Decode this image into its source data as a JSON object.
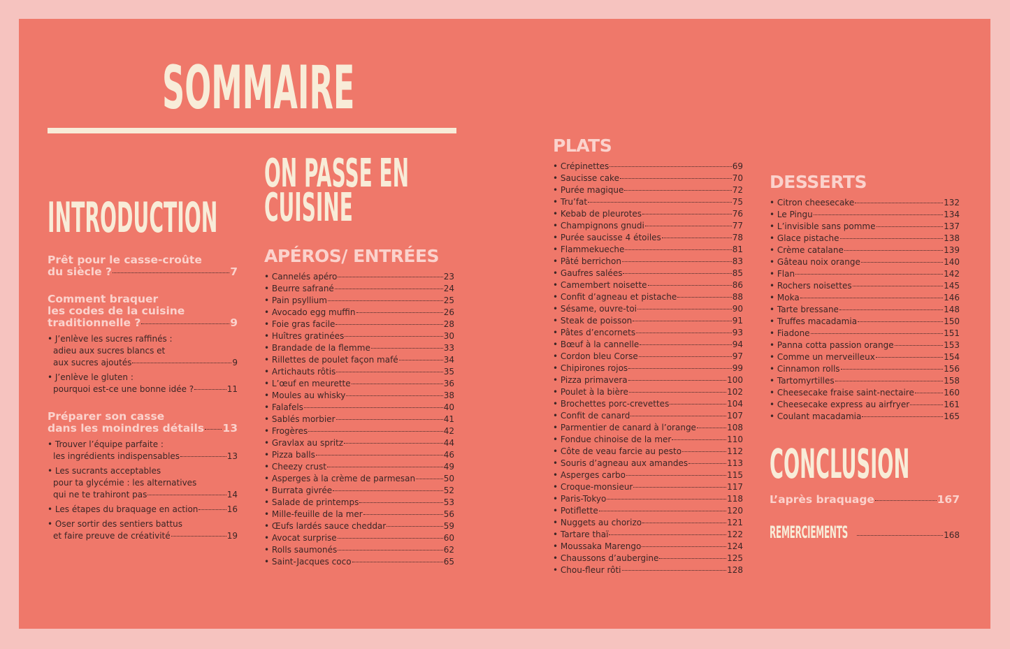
{
  "header": {
    "title": "SOMMAIRE"
  },
  "introduction": {
    "heading": "INTRODUCTION",
    "sections": [
      {
        "title": [
          "Prêt pour le casse-croûte",
          "du siècle ?"
        ],
        "page": 7,
        "items": []
      },
      {
        "title": [
          "Comment braquer",
          "les codes de la cuisine",
          "traditionnelle ?"
        ],
        "page": 9,
        "items": [
          {
            "lines": [
              "• J’enlève les sucres raffinés :",
              "adieu aux sucres blancs et",
              "aux sucres ajoutés"
            ],
            "page": 9
          },
          {
            "lines": [
              "• J’enlève le gluten :",
              "pourquoi est-ce une bonne idée ?"
            ],
            "page": 11
          }
        ]
      },
      {
        "title": [
          "Préparer son casse",
          "dans les moindres détails"
        ],
        "page": 13,
        "items": [
          {
            "lines": [
              "• Trouver l’équipe parfaite :",
              "les ingrédients indispensables"
            ],
            "page": 13
          },
          {
            "lines": [
              "• Les sucrants acceptables",
              "pour ta glycémie : les alternatives",
              "qui ne te trahiront pas"
            ],
            "page": 14
          },
          {
            "lines": [
              "• Les étapes du braquage en action"
            ],
            "page": 16
          },
          {
            "lines": [
              "• Oser sortir des sentiers battus",
              "et faire preuve de créativité"
            ],
            "page": 19
          }
        ]
      }
    ]
  },
  "cuisine": {
    "heading": [
      "ON PASSE EN",
      "CUISINE"
    ]
  },
  "aperos": {
    "heading": "APÉROS/ ENTRÉES",
    "items": [
      {
        "text": "• Cannelés apéro",
        "page": 23
      },
      {
        "text": "• Beurre safrané",
        "page": 24
      },
      {
        "text": "• Pain psyllium",
        "page": 25
      },
      {
        "text": "• Avocado egg muffin",
        "page": 26
      },
      {
        "text": "• Foie gras facile",
        "page": 28
      },
      {
        "text": "• Huîtres gratinées",
        "page": 30
      },
      {
        "text": "• Brandade de la flemme",
        "page": 33
      },
      {
        "text": "• Rillettes de poulet façon mafé",
        "page": 34
      },
      {
        "text": "• Artichauts rôtis",
        "page": 35
      },
      {
        "text": "• L’œuf en meurette",
        "page": 36
      },
      {
        "text": "• Moules au whisky",
        "page": 38
      },
      {
        "text": "• Falafels",
        "page": 40
      },
      {
        "text": "• Sablés morbier",
        "page": 41
      },
      {
        "text": "• Frogères",
        "page": 42
      },
      {
        "text": "• Gravlax au spritz",
        "page": 44
      },
      {
        "text": "• Pizza balls",
        "page": 46
      },
      {
        "text": "• Cheezy crust",
        "page": 49
      },
      {
        "text": "• Asperges à la crème de parmesan",
        "page": 50
      },
      {
        "text": "• Burrata givrée",
        "page": 52
      },
      {
        "text": "• Salade de printemps",
        "page": 53
      },
      {
        "text": "• Mille-feuille de la mer",
        "page": 56
      },
      {
        "text": "• Œufs lardés sauce cheddar",
        "page": 59
      },
      {
        "text": "• Avocat surprise",
        "page": 60
      },
      {
        "text": "• Rolls saumonés",
        "page": 62
      },
      {
        "text": "• Saint-Jacques coco",
        "page": 65
      }
    ]
  },
  "plats": {
    "heading": "PLATS",
    "items": [
      {
        "text": "• Crépinettes",
        "page": 69
      },
      {
        "text": "• Saucisse cake",
        "page": 70
      },
      {
        "text": "• Purée magique",
        "page": 72
      },
      {
        "text": "• Tru’fat",
        "page": 75
      },
      {
        "text": "• Kebab de pleurotes",
        "page": 76
      },
      {
        "text": "• Champignons gnudi",
        "page": 77
      },
      {
        "text": "• Purée saucisse 4 étoiles",
        "page": 78
      },
      {
        "text": "• Flammekueche",
        "page": 81
      },
      {
        "text": "• Pâté berrichon",
        "page": 83
      },
      {
        "text": "• Gaufres salées",
        "page": 85
      },
      {
        "text": "• Camembert noisette",
        "page": 86
      },
      {
        "text": "• Confit d’agneau et pistache",
        "page": 88
      },
      {
        "text": "• Sésame, ouvre-toi",
        "page": 90
      },
      {
        "text": "• Steak de poisson",
        "page": 91
      },
      {
        "text": "• Pâtes d’encornets",
        "page": 93
      },
      {
        "text": "• Bœuf à la cannelle",
        "page": 94
      },
      {
        "text": "• Cordon bleu Corse",
        "page": 97
      },
      {
        "text": "• Chipirones rojos",
        "page": 99
      },
      {
        "text": "• Pizza primavera",
        "page": 100
      },
      {
        "text": "• Poulet à la bière",
        "page": 102
      },
      {
        "text": "• Brochettes porc-crevettes",
        "page": 104
      },
      {
        "text": "• Confit de canard",
        "page": 107
      },
      {
        "text": "• Parmentier de canard à l’orange",
        "page": 108
      },
      {
        "text": "• Fondue chinoise de la mer",
        "page": 110
      },
      {
        "text": "• Côte de veau farcie au pesto",
        "page": 112
      },
      {
        "text": "• Souris d’agneau aux amandes",
        "page": 113
      },
      {
        "text": "• Asperges carbo",
        "page": 115
      },
      {
        "text": "• Croque-monsieur",
        "page": 117
      },
      {
        "text": "• Paris-Tokyo",
        "page": 118
      },
      {
        "text": "• Potiflette",
        "page": 120
      },
      {
        "text": "• Nuggets au chorizo",
        "page": 121
      },
      {
        "text": "• Tartare thaï",
        "page": 122
      },
      {
        "text": "• Moussaka Marengo",
        "page": 124
      },
      {
        "text": "• Chaussons d’aubergine",
        "page": 125
      },
      {
        "text": "• Chou-fleur rôti",
        "page": 128
      }
    ]
  },
  "desserts": {
    "heading": "DESSERTS",
    "items": [
      {
        "text": "• Citron cheesecake",
        "page": 132
      },
      {
        "text": "• Le Pingu",
        "page": 134
      },
      {
        "text": "• L’invisible sans pomme",
        "page": 137
      },
      {
        "text": "• Glace pistache",
        "page": 138
      },
      {
        "text": "• Crème catalane",
        "page": 139
      },
      {
        "text": "• Gâteau noix orange",
        "page": 140
      },
      {
        "text": "• Flan",
        "page": 142
      },
      {
        "text": "• Rochers noisettes",
        "page": 145
      },
      {
        "text": "• Moka",
        "page": 146
      },
      {
        "text": "• Tarte bressane",
        "page": 148
      },
      {
        "text": "• Truffes macadamia",
        "page": 150
      },
      {
        "text": "• Fiadone",
        "page": 151
      },
      {
        "text": "• Panna cotta passion orange",
        "page": 153
      },
      {
        "text": "• Comme un merveilleux",
        "page": 154
      },
      {
        "text": "• Cinnamon rolls",
        "page": 156
      },
      {
        "text": "• Tartomyrtilles",
        "page": 158
      },
      {
        "text": "• Cheesecake fraise saint-nectaire",
        "page": 160
      },
      {
        "text": "• Cheesecake express au airfryer",
        "page": 161
      },
      {
        "text": "• Coulant macadamia",
        "page": 165
      }
    ]
  },
  "conclusion": {
    "heading": "CONCLUSION",
    "after": {
      "text": "L’après braquage",
      "page": 167
    },
    "thanks": {
      "text": "REMERCIEMENTS",
      "page": 168
    }
  }
}
